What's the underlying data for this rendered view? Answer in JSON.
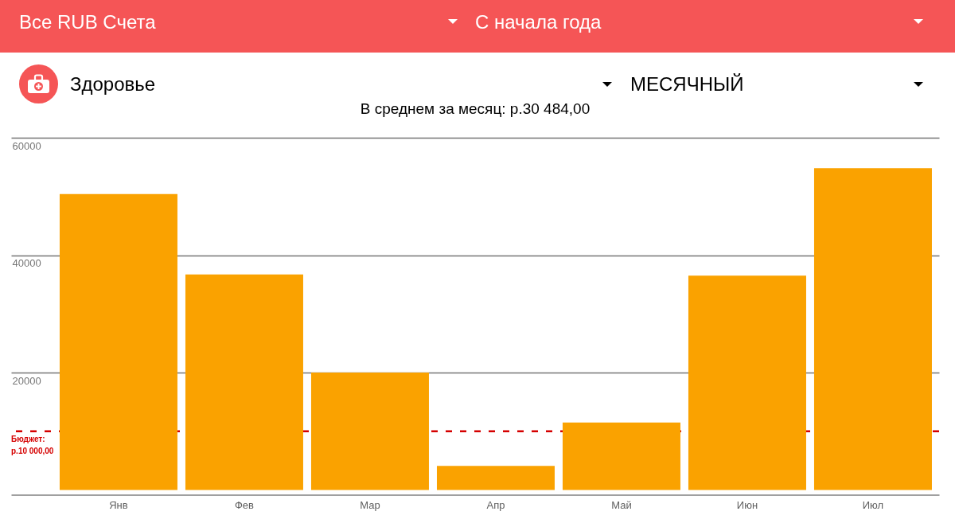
{
  "chart_data": {
    "type": "bar",
    "title": "В среднем за месяц: р.30 484,00",
    "annotations": [
      "Все RUB Счета",
      "С начала года",
      "Здоровье",
      "МЕСЯЧНЫЙ"
    ],
    "categories": [
      "Янв",
      "Фев",
      "Мар",
      "Апр",
      "Май",
      "Июн",
      "Июл"
    ],
    "values": [
      50400,
      36700,
      20000,
      4100,
      11500,
      36500,
      54800
    ],
    "color": "#faa200",
    "ylim": [
      0,
      60000
    ],
    "yticks": [
      20000,
      40000,
      60000
    ],
    "grid": "y",
    "ref_lines": [
      {
        "axis": "y",
        "value": 10000,
        "label": "Бюджет:\nр.10 000,00",
        "color": "#d50000",
        "line_style": "dashed"
      }
    ]
  }
}
